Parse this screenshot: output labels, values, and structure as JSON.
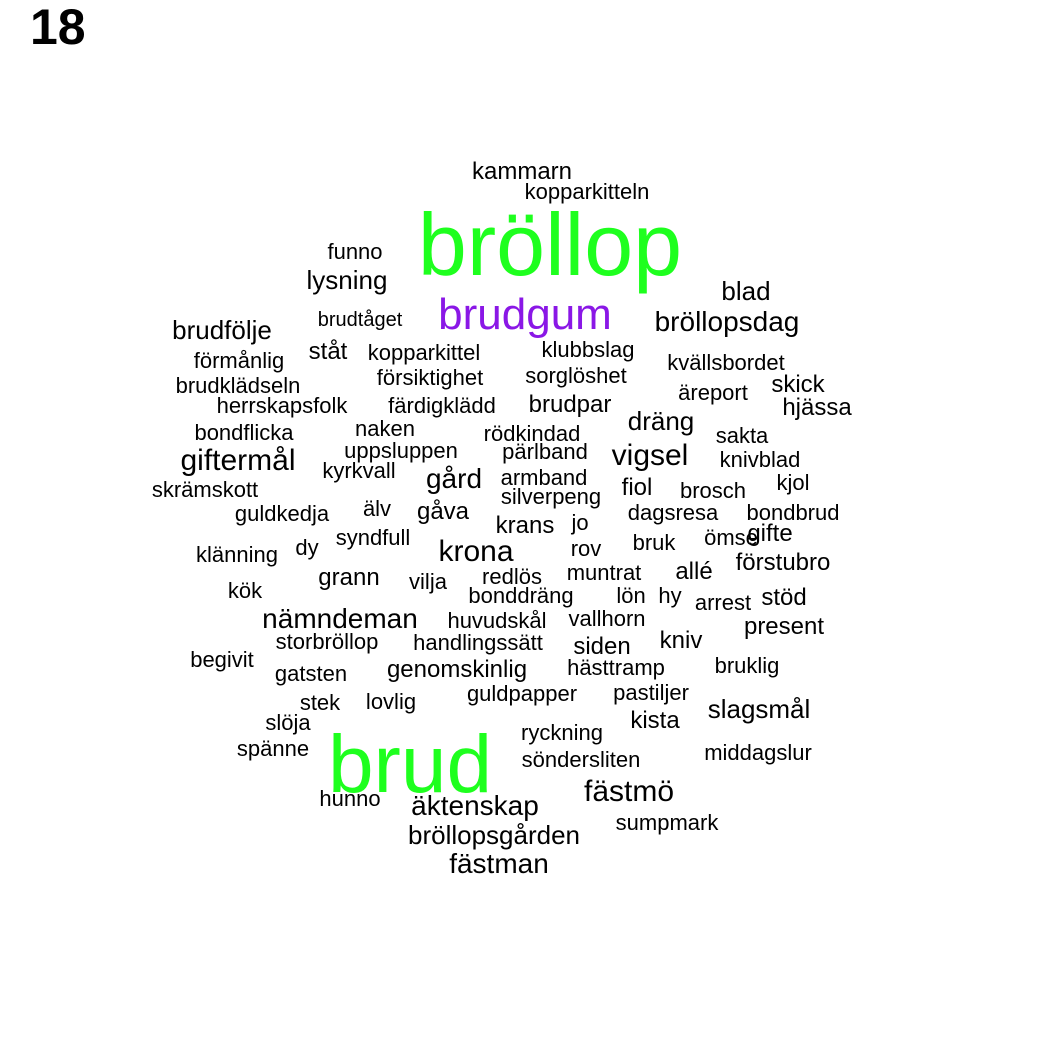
{
  "panel_label": "18",
  "colors": {
    "primary": "#1eff1e",
    "secondary": "#8a17e6",
    "default": "#000000"
  },
  "words": [
    {
      "text": "bröllop",
      "weight": "primary"
    },
    {
      "text": "brud",
      "weight": "primary"
    },
    {
      "text": "brudgum",
      "weight": "secondary"
    },
    {
      "text": "kammarn"
    },
    {
      "text": "kopparkitteln"
    },
    {
      "text": "funno"
    },
    {
      "text": "lysning"
    },
    {
      "text": "blad"
    },
    {
      "text": "brudtåget"
    },
    {
      "text": "bröllopsdag"
    },
    {
      "text": "brudfölje"
    },
    {
      "text": "ståt"
    },
    {
      "text": "kopparkittel"
    },
    {
      "text": "klubbslag"
    },
    {
      "text": "förmånlig"
    },
    {
      "text": "kvällsbordet"
    },
    {
      "text": "försiktighet"
    },
    {
      "text": "sorglöshet"
    },
    {
      "text": "brudklädseln"
    },
    {
      "text": "skick"
    },
    {
      "text": "äreport"
    },
    {
      "text": "herrskapsfolk"
    },
    {
      "text": "färdigklädd"
    },
    {
      "text": "brudpar"
    },
    {
      "text": "hjässa"
    },
    {
      "text": "dräng"
    },
    {
      "text": "bondflicka"
    },
    {
      "text": "naken"
    },
    {
      "text": "rödkindad"
    },
    {
      "text": "sakta"
    },
    {
      "text": "uppsluppen"
    },
    {
      "text": "pärlband"
    },
    {
      "text": "giftermål"
    },
    {
      "text": "vigsel"
    },
    {
      "text": "knivblad"
    },
    {
      "text": "kyrkvall"
    },
    {
      "text": "gård"
    },
    {
      "text": "armband"
    },
    {
      "text": "kjol"
    },
    {
      "text": "skrämskott"
    },
    {
      "text": "fiol"
    },
    {
      "text": "brosch"
    },
    {
      "text": "silverpeng"
    },
    {
      "text": "älv"
    },
    {
      "text": "gåva"
    },
    {
      "text": "guldkedja"
    },
    {
      "text": "dagsresa"
    },
    {
      "text": "bondbrud"
    },
    {
      "text": "krans"
    },
    {
      "text": "jo"
    },
    {
      "text": "syndfull"
    },
    {
      "text": "gifte"
    },
    {
      "text": "dy"
    },
    {
      "text": "krona"
    },
    {
      "text": "rov"
    },
    {
      "text": "bruk"
    },
    {
      "text": "ömse"
    },
    {
      "text": "klänning"
    },
    {
      "text": "förstubro"
    },
    {
      "text": "redlös"
    },
    {
      "text": "muntrat"
    },
    {
      "text": "allé"
    },
    {
      "text": "grann"
    },
    {
      "text": "vilja"
    },
    {
      "text": "kök"
    },
    {
      "text": "bonddräng"
    },
    {
      "text": "lön"
    },
    {
      "text": "hy"
    },
    {
      "text": "arrest"
    },
    {
      "text": "stöd"
    },
    {
      "text": "nämndeman"
    },
    {
      "text": "huvudskål"
    },
    {
      "text": "vallhorn"
    },
    {
      "text": "present"
    },
    {
      "text": "storbröllop"
    },
    {
      "text": "handlingssätt"
    },
    {
      "text": "siden"
    },
    {
      "text": "kniv"
    },
    {
      "text": "begivit"
    },
    {
      "text": "genomskinlig"
    },
    {
      "text": "hästtramp"
    },
    {
      "text": "bruklig"
    },
    {
      "text": "gatsten"
    },
    {
      "text": "guldpapper"
    },
    {
      "text": "pastiljer"
    },
    {
      "text": "stek"
    },
    {
      "text": "lovlig"
    },
    {
      "text": "slagsmål"
    },
    {
      "text": "slöja"
    },
    {
      "text": "kista"
    },
    {
      "text": "ryckning"
    },
    {
      "text": "spänne"
    },
    {
      "text": "middagslur"
    },
    {
      "text": "söndersliten"
    },
    {
      "text": "fästmö"
    },
    {
      "text": "hunno"
    },
    {
      "text": "äktenskap"
    },
    {
      "text": "sumpmark"
    },
    {
      "text": "bröllopsgården"
    },
    {
      "text": "fästman"
    }
  ]
}
